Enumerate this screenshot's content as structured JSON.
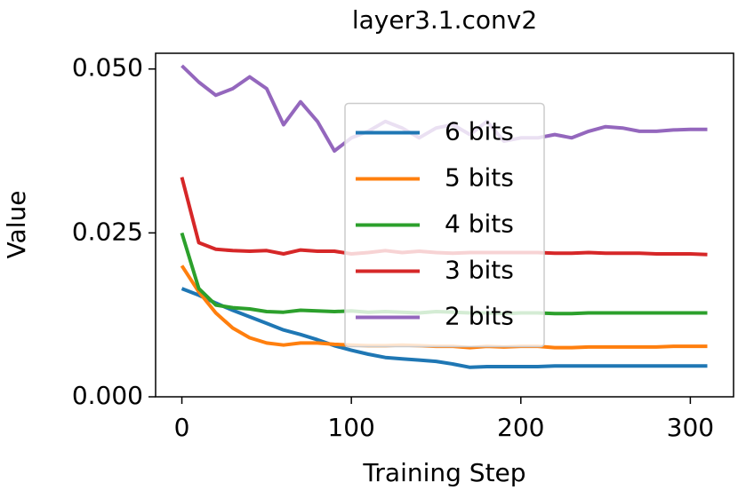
{
  "chart_data": {
    "type": "line",
    "title": "layer3.1.conv2",
    "x_label": "Training Step",
    "y_label": "Value",
    "x": [
      0,
      10,
      20,
      30,
      40,
      50,
      60,
      70,
      80,
      90,
      100,
      110,
      120,
      130,
      140,
      150,
      160,
      170,
      180,
      190,
      200,
      210,
      220,
      230,
      240,
      250,
      260,
      270,
      280,
      290,
      300,
      310
    ],
    "series": [
      {
        "name": "6 bits",
        "color": "#1f77b4",
        "values": [
          0.0165,
          0.0155,
          0.0143,
          0.0132,
          0.0122,
          0.0112,
          0.0102,
          0.0095,
          0.0087,
          0.0078,
          0.0071,
          0.0065,
          0.006,
          0.0058,
          0.0056,
          0.0054,
          0.005,
          0.0045,
          0.0046,
          0.0046,
          0.0046,
          0.0046,
          0.0047,
          0.0047,
          0.0047,
          0.0047,
          0.0047,
          0.0047,
          0.0047,
          0.0047,
          0.0047,
          0.0047
        ]
      },
      {
        "name": "5 bits",
        "color": "#ff7f0e",
        "values": [
          0.02,
          0.016,
          0.0128,
          0.0105,
          0.009,
          0.0082,
          0.0079,
          0.0082,
          0.0082,
          0.008,
          0.0079,
          0.0078,
          0.0078,
          0.0079,
          0.0078,
          0.0077,
          0.0077,
          0.0075,
          0.0077,
          0.0076,
          0.0077,
          0.0077,
          0.0075,
          0.0075,
          0.0076,
          0.0076,
          0.0076,
          0.0076,
          0.0076,
          0.0077,
          0.0077,
          0.0077
        ]
      },
      {
        "name": "4 bits",
        "color": "#2ca02c",
        "values": [
          0.025,
          0.0165,
          0.014,
          0.0136,
          0.0134,
          0.013,
          0.0129,
          0.0132,
          0.0131,
          0.013,
          0.0131,
          0.0129,
          0.013,
          0.0129,
          0.0128,
          0.013,
          0.0129,
          0.0128,
          0.0128,
          0.0127,
          0.0128,
          0.0128,
          0.0127,
          0.0127,
          0.0128,
          0.0128,
          0.0128,
          0.0128,
          0.0128,
          0.0128,
          0.0128,
          0.0128
        ]
      },
      {
        "name": "3 bits",
        "color": "#d62728",
        "values": [
          0.0335,
          0.0235,
          0.0225,
          0.0223,
          0.0222,
          0.0223,
          0.0218,
          0.0224,
          0.0222,
          0.0222,
          0.0218,
          0.022,
          0.0223,
          0.022,
          0.0222,
          0.022,
          0.0219,
          0.022,
          0.022,
          0.022,
          0.022,
          0.022,
          0.0219,
          0.0219,
          0.022,
          0.0219,
          0.0219,
          0.0219,
          0.0218,
          0.0218,
          0.0218,
          0.0217
        ]
      },
      {
        "name": "2 bits",
        "color": "#9467bd",
        "values": [
          0.0505,
          0.048,
          0.046,
          0.047,
          0.0488,
          0.047,
          0.0415,
          0.045,
          0.042,
          0.0375,
          0.0395,
          0.0405,
          0.042,
          0.041,
          0.0395,
          0.041,
          0.0415,
          0.04,
          0.042,
          0.039,
          0.0395,
          0.0395,
          0.04,
          0.0395,
          0.0405,
          0.0412,
          0.041,
          0.0405,
          0.0405,
          0.0407,
          0.0408,
          0.0408
        ]
      }
    ],
    "xlim": [
      -15.5,
      325.5
    ],
    "ylim": [
      0,
      0.0524
    ],
    "xticks": [
      0,
      100,
      200,
      300
    ],
    "yticks": [
      {
        "value": 0,
        "label": "0.000"
      },
      {
        "value": 0.025,
        "label": "0.025"
      },
      {
        "value": 0.05,
        "label": "0.050"
      }
    ],
    "legend": "center"
  }
}
